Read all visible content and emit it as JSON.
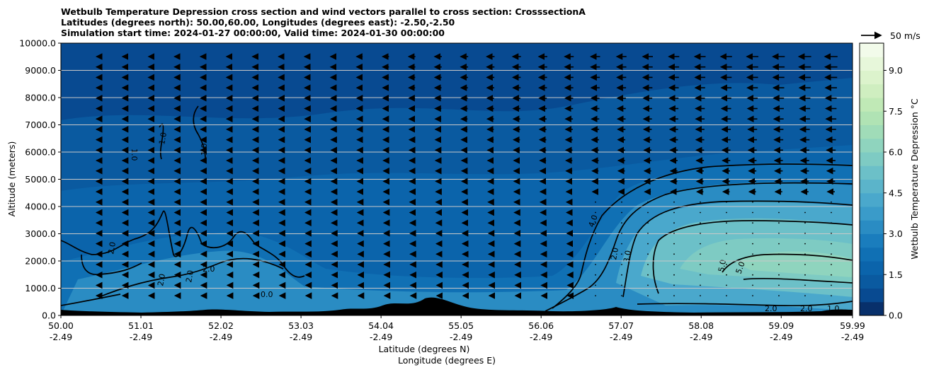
{
  "figure": {
    "title_lines": [
      "Wetbulb Temperature Depression cross section and wind vectors parallel to cross section: CrosssectionA",
      "Latitudes (degrees north): 50.00,60.00, Longitudes (degrees east): -2.50,-2.50",
      "Simulation start time: 2024-01-27 00:00:00, Valid time: 2024-01-30 00:00:00"
    ]
  },
  "chart_data": {
    "type": "heatmap",
    "title": "Wetbulb Temperature Depression cross section and wind vectors parallel to cross section: CrosssectionA",
    "xlabel": "Latitude (degrees N)",
    "xlabel2": "Longitude (degrees E)",
    "ylabel": "Altitude (meters)",
    "ylim": [
      0,
      10000
    ],
    "xlim": [
      50.0,
      59.99
    ],
    "x_ticks": [
      {
        "lat": "50.00",
        "lon": "-2.49"
      },
      {
        "lat": "51.01",
        "lon": "-2.49"
      },
      {
        "lat": "52.02",
        "lon": "-2.49"
      },
      {
        "lat": "53.03",
        "lon": "-2.49"
      },
      {
        "lat": "54.04",
        "lon": "-2.49"
      },
      {
        "lat": "55.05",
        "lon": "-2.49"
      },
      {
        "lat": "56.06",
        "lon": "-2.49"
      },
      {
        "lat": "57.07",
        "lon": "-2.49"
      },
      {
        "lat": "58.08",
        "lon": "-2.49"
      },
      {
        "lat": "59.09",
        "lon": "-2.49"
      },
      {
        "lat": "59.99",
        "lon": "-2.49"
      }
    ],
    "y_ticks": [
      "0.0",
      "1000.0",
      "2000.0",
      "3000.0",
      "4000.0",
      "5000.0",
      "6000.0",
      "7000.0",
      "8000.0",
      "9000.0",
      "10000.0"
    ],
    "y_tick_values": [
      0,
      1000,
      2000,
      3000,
      4000,
      5000,
      6000,
      7000,
      8000,
      9000,
      10000
    ],
    "grid": "horizontal",
    "colorbar": {
      "label": "Wetbulb Temperature Depression °C",
      "range": [
        0,
        10
      ],
      "levels": 20,
      "tick_labels": [
        "0.0",
        "1.5",
        "3.0",
        "4.5",
        "6.0",
        "7.5",
        "9.0"
      ],
      "tick_values": [
        0,
        1.5,
        3.0,
        4.5,
        6.0,
        7.5,
        9.0
      ],
      "colors": [
        "#08306b",
        "#084a91",
        "#0a5aa0",
        "#0b64ab",
        "#1070b4",
        "#1a7dbd",
        "#2a8cc3",
        "#3a9bc9",
        "#4aa8cc",
        "#5bb4ca",
        "#6cc0c8",
        "#7ecbc3",
        "#8fd4be",
        "#a0dcb8",
        "#b0e3b4",
        "#c0e9b6",
        "#cfeec0",
        "#dcf3cc",
        "#e7f7da",
        "#f2fbea"
      ]
    },
    "wind_reference": "50 m/s",
    "contour_labels": [
      "1.0",
      "2.0",
      "3.0",
      "4.0",
      "5.0",
      "0.0"
    ]
  }
}
